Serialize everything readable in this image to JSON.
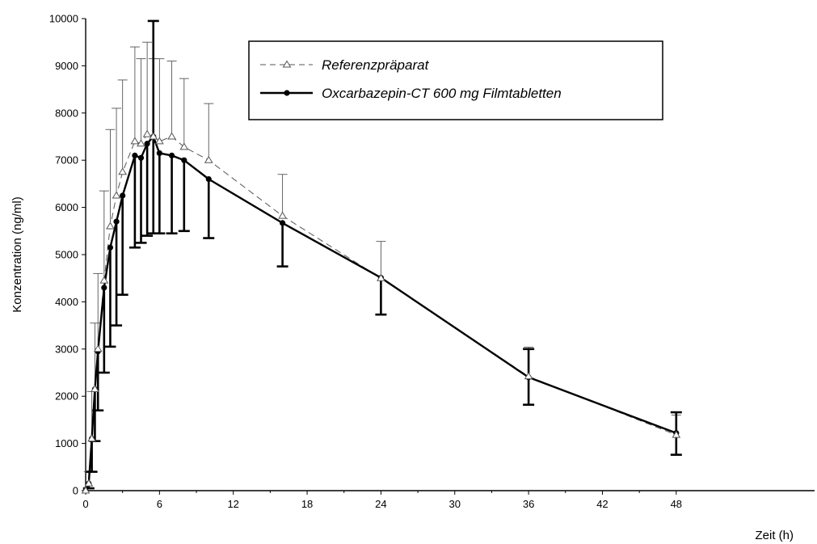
{
  "chart_data": {
    "type": "line",
    "title": "",
    "xlabel": "Zeit (h)",
    "ylabel": "Konzentration (ng/ml)",
    "xlim": [
      0,
      50
    ],
    "ylim": [
      0,
      10000
    ],
    "x_ticks": [
      0,
      6,
      12,
      18,
      24,
      30,
      36,
      42,
      48
    ],
    "y_ticks": [
      0,
      1000,
      2000,
      3000,
      4000,
      5000,
      6000,
      7000,
      8000,
      9000,
      10000
    ],
    "grid": false,
    "legend_position": "top-center",
    "series": [
      {
        "name": "Referenzpräparat",
        "style": "dashed",
        "marker": "open-triangle",
        "error_bar_side": "upper",
        "color": "#555555",
        "x": [
          0,
          0.25,
          0.5,
          0.75,
          1,
          1.5,
          2,
          2.5,
          3,
          4,
          4.5,
          5,
          5.5,
          6,
          7,
          8,
          10,
          16,
          24,
          36,
          48
        ],
        "y": [
          0,
          150,
          1100,
          2150,
          3000,
          4450,
          5600,
          6250,
          6750,
          7400,
          7350,
          7550,
          7500,
          7400,
          7500,
          7280,
          7000,
          5820,
          4500,
          2420,
          1180
        ],
        "error_upper": [
          0,
          250,
          1000,
          1400,
          1600,
          1900,
          2050,
          1850,
          1950,
          2000,
          1800,
          1950,
          1650,
          1750,
          1600,
          1450,
          1200,
          880,
          780,
          620,
          420
        ]
      },
      {
        "name": "Oxcarbazepin-CT 600 mg Filmtabletten",
        "style": "solid",
        "marker": "filled-circle",
        "error_bar_side": "lower",
        "color": "#000000",
        "x": [
          0,
          0.25,
          0.5,
          0.75,
          1,
          1.5,
          2,
          2.5,
          3,
          4,
          4.5,
          5,
          5.5,
          6,
          7,
          8,
          10,
          16,
          24,
          36,
          48
        ],
        "y": [
          0,
          150,
          1100,
          2150,
          2950,
          4300,
          5150,
          5700,
          6250,
          7100,
          7050,
          7350,
          7500,
          7150,
          7100,
          7000,
          6600,
          5670,
          4510,
          2400,
          1220
        ],
        "error_lower": [
          0,
          100,
          700,
          1100,
          1250,
          1800,
          2100,
          2200,
          2100,
          1950,
          1800,
          1950,
          2050,
          1700,
          1650,
          1500,
          1250,
          920,
          780,
          580,
          460
        ],
        "error_upper": [
          0,
          0,
          0,
          0,
          0,
          0,
          0,
          0,
          0,
          0,
          0,
          0,
          2450,
          0,
          0,
          0,
          0,
          0,
          0,
          600,
          440
        ]
      }
    ]
  }
}
